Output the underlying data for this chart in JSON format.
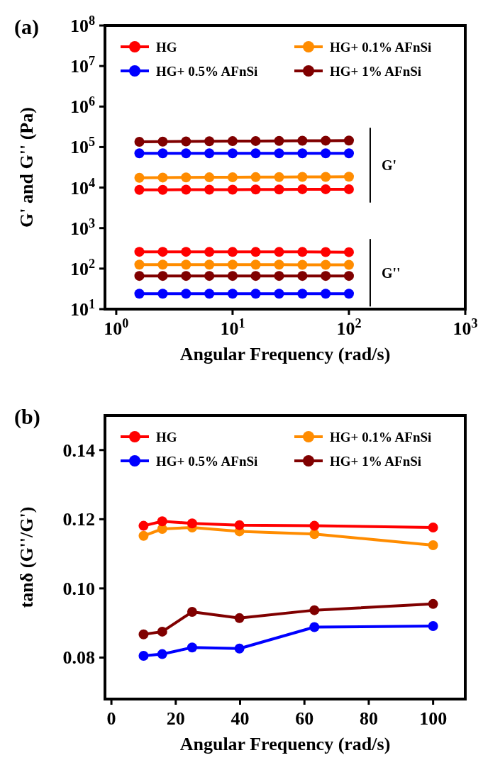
{
  "chart_data": [
    {
      "type": "line",
      "title": "(a)",
      "xlabel": "Angular Frequency (rad/s)",
      "ylabel": "G' and G'' (Pa)",
      "log": "xy",
      "marker": "circle",
      "line_style": "solid",
      "grid": false,
      "legend": "top",
      "xlim": [
        0.8,
        1000
      ],
      "xticks": [
        {
          "value": 1,
          "label": "10$^{0}$"
        },
        {
          "value": 10,
          "label": "10$^{1}$"
        },
        {
          "value": 100,
          "label": "10$^{2}$"
        },
        {
          "value": 1000,
          "label": "10$^{3}$"
        }
      ],
      "ylim": [
        10,
        100000000
      ],
      "yticks": [
        {
          "value": 10,
          "label": "10$^{1}$"
        },
        {
          "value": 100,
          "label": "10$^{2}$"
        },
        {
          "value": 1000,
          "label": "10$^{3}$"
        },
        {
          "value": 10000,
          "label": "10$^{4}$"
        },
        {
          "value": 100000,
          "label": "10$^{5}$"
        },
        {
          "value": 1000000,
          "label": "10$^{6}$"
        },
        {
          "value": 10000000,
          "label": "10$^{7}$"
        },
        {
          "value": 100000000,
          "label": "10$^{8}$"
        }
      ],
      "x": [
        1.58,
        2.51,
        3.98,
        6.31,
        10,
        15.8,
        25.1,
        39.8,
        63.1,
        100
      ],
      "series": [
        {
          "name": "HG",
          "color": "#ff0000",
          "values": [
            8800,
            8800,
            8900,
            8900,
            8900,
            9000,
            9000,
            9100,
            9100,
            9100
          ]
        },
        {
          "name": "HG+ 0.1% AFnSi",
          "color": "#ff8c00",
          "values": [
            17500,
            17700,
            17800,
            17900,
            18000,
            18100,
            18200,
            18300,
            18400,
            18500
          ]
        },
        {
          "name": "HG+ 0.5% AFnSi",
          "color": "#0000ff",
          "values": [
            70000,
            70000,
            70000,
            70000,
            70000,
            70000,
            70000,
            70000,
            70000,
            70000
          ]
        },
        {
          "name": "HG+ 1% AFnSi",
          "color": "#800000",
          "values": [
            135000,
            136000,
            138000,
            139000,
            140000,
            141000,
            142000,
            143000,
            144000,
            145000
          ]
        },
        {
          "color": "#ff0000",
          "values": [
            260,
            260,
            260,
            258,
            258,
            258,
            258,
            258,
            256,
            255
          ]
        },
        {
          "color": "#ff8c00",
          "values": [
            125,
            125,
            125,
            125,
            125,
            125,
            125,
            124,
            124,
            124
          ]
        },
        {
          "color": "#800000",
          "values": [
            66,
            66,
            66,
            66,
            66,
            66,
            66,
            66,
            66,
            66
          ]
        },
        {
          "color": "#0000ff",
          "values": [
            24,
            24,
            24,
            24,
            24,
            24,
            24,
            24,
            24,
            24
          ]
        }
      ],
      "annotations": [
        "G'",
        "G''"
      ]
    },
    {
      "type": "line",
      "title": "(b)",
      "xlabel": "Angular Frequency (rad/s)",
      "ylabel": "tanδ (G''/G')",
      "marker": "circle",
      "line_style": "solid",
      "grid": false,
      "legend": "top",
      "xlim": [
        -2,
        110
      ],
      "xticks": [
        0,
        20,
        40,
        60,
        80,
        100
      ],
      "ylim": [
        0.068,
        0.15
      ],
      "yticks": [
        0.08,
        {
          "value": 0.1,
          "label": "0.10"
        },
        0.12,
        0.14
      ],
      "x": [
        10,
        15.8,
        25.1,
        39.8,
        63.1,
        100
      ],
      "series": [
        {
          "name": "HG",
          "color": "#ff0000",
          "values": [
            0.1181,
            0.1194,
            0.1188,
            0.1183,
            0.1181,
            0.1176
          ]
        },
        {
          "name": "HG+ 0.1% AFnSi",
          "color": "#ff8c00",
          "values": [
            0.1152,
            0.1172,
            0.1176,
            0.1165,
            0.1157,
            0.1125
          ]
        },
        {
          "name": "HG+ 0.5% AFnSi",
          "color": "#0000ff",
          "values": [
            0.0805,
            0.081,
            0.0829,
            0.0826,
            0.0888,
            0.0891
          ]
        },
        {
          "name": "HG+ 1% AFnSi",
          "color": "#800000",
          "values": [
            0.0867,
            0.0875,
            0.0932,
            0.0914,
            0.0937,
            0.0955
          ]
        }
      ]
    }
  ]
}
